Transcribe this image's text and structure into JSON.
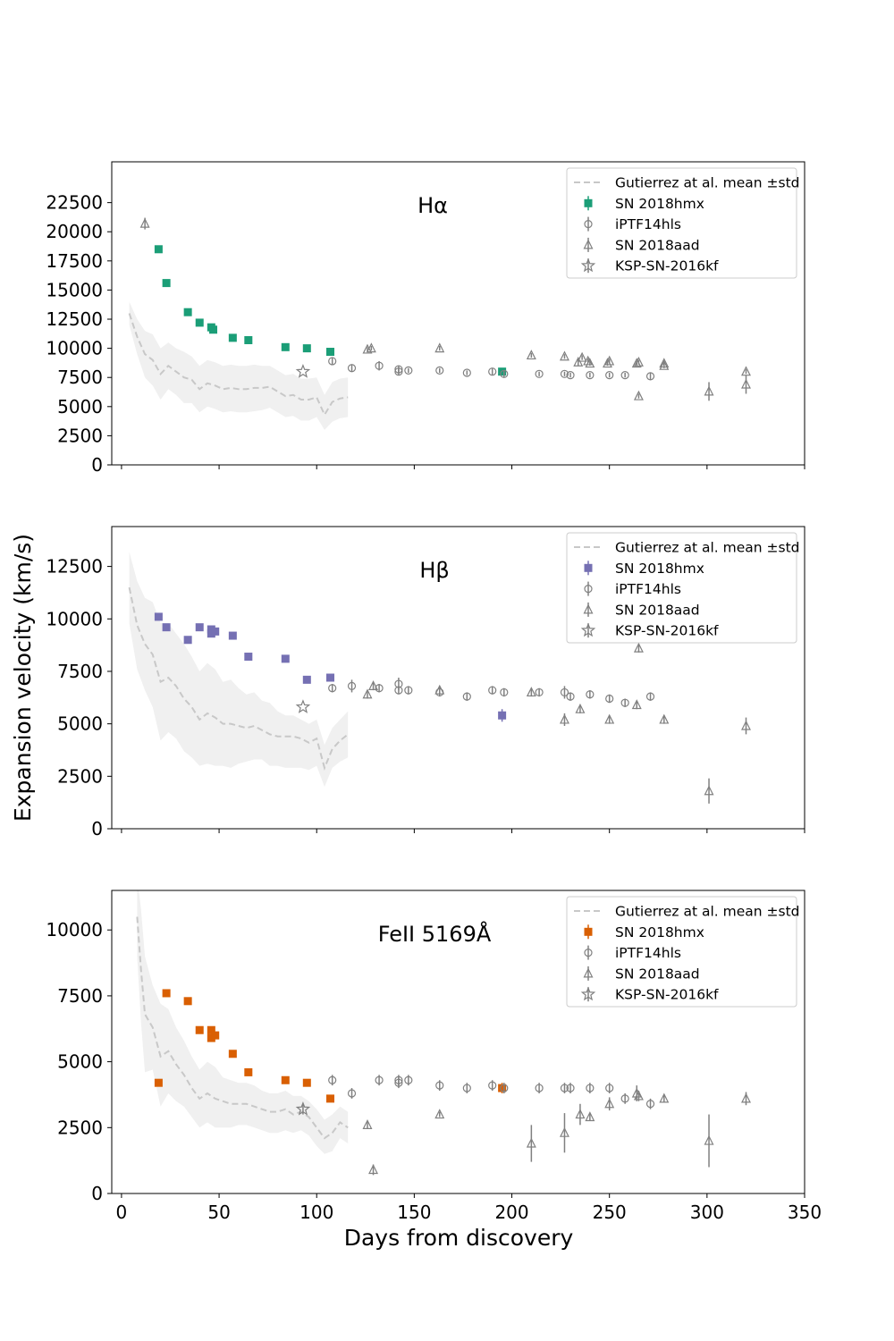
{
  "figure": {
    "ylabel": "Expansion velocity (km/s)",
    "xlabel": "Days from discovery",
    "xlim": [
      -5,
      350
    ],
    "xticks": [
      0,
      50,
      100,
      150,
      200,
      250,
      300,
      350
    ]
  },
  "legend_labels": [
    "Gutierrez at al. mean ±std",
    "SN 2018hmx",
    "iPTF14hls",
    "SN 2018aad",
    "KSP-SN-2016kf"
  ],
  "colors": {
    "Ha": "#1b9e77",
    "Hb": "#7570b3",
    "Fe": "#d95f02",
    "comparison": "#808080",
    "band": "#f0f0f0",
    "mean": "#c8c8c8"
  },
  "chart_data": [
    {
      "type": "scatter",
      "title": "Hα",
      "ylim": [
        0,
        26000
      ],
      "yticks": [
        0,
        2500,
        5000,
        7500,
        10000,
        12500,
        15000,
        17500,
        20000,
        22500
      ],
      "legend": "top-right",
      "series": [
        {
          "name": "Gutierrez at al. mean ±std",
          "kind": "band",
          "x": [
            4,
            8,
            12,
            16,
            20,
            24,
            28,
            32,
            36,
            40,
            44,
            48,
            52,
            56,
            60,
            64,
            68,
            72,
            76,
            80,
            84,
            88,
            92,
            96,
            100,
            104,
            108,
            112,
            116
          ],
          "y": [
            13000,
            11000,
            9500,
            9000,
            7800,
            8500,
            8000,
            7500,
            7300,
            6500,
            7000,
            6800,
            6500,
            6600,
            6500,
            6500,
            6600,
            6600,
            6700,
            6300,
            5900,
            6000,
            5600,
            5600,
            5800,
            4300,
            5400,
            5700,
            5800
          ],
          "upper": [
            14000,
            12500,
            11500,
            11200,
            10000,
            10500,
            10000,
            9700,
            9300,
            8500,
            9000,
            8800,
            8500,
            8600,
            8500,
            8500,
            8600,
            8500,
            8500,
            8100,
            7700,
            7800,
            7400,
            7400,
            7500,
            6000,
            7100,
            7400,
            7500
          ],
          "lower": [
            12000,
            9500,
            7500,
            6800,
            5600,
            6500,
            6000,
            5300,
            5300,
            4500,
            5000,
            4800,
            4500,
            4600,
            4500,
            4500,
            4600,
            4700,
            4900,
            4500,
            4100,
            4200,
            3800,
            3800,
            4100,
            3000,
            3700,
            4000,
            4100
          ]
        },
        {
          "name": "SN 2018hmx",
          "kind": "square",
          "x": [
            19,
            23,
            34,
            40,
            46,
            47,
            57,
            65,
            84,
            95,
            107,
            195
          ],
          "y": [
            18500,
            15600,
            13100,
            12200,
            11800,
            11600,
            10900,
            10700,
            10100,
            10000,
            9700,
            8000
          ]
        },
        {
          "name": "iPTF14hls",
          "kind": "circle",
          "x": [
            108,
            118,
            132,
            142,
            142,
            147,
            163,
            177,
            190,
            196,
            214,
            227,
            230,
            240,
            250,
            258,
            271
          ],
          "y": [
            8900,
            8300,
            8500,
            8000,
            8200,
            8100,
            8100,
            7900,
            8000,
            7800,
            7800,
            7800,
            7700,
            7700,
            7700,
            7700,
            7600
          ],
          "yerr": [
            300,
            300,
            400,
            300,
            300,
            200,
            200,
            200,
            300,
            300,
            200,
            200,
            200,
            200,
            200,
            200,
            300
          ]
        },
        {
          "name": "SN 2018aad",
          "kind": "triangle",
          "x": [
            12,
            126,
            128,
            163,
            210,
            227,
            234,
            236,
            239,
            240,
            249,
            250,
            264,
            265,
            265,
            278,
            278,
            301,
            320,
            320
          ],
          "y": [
            20700,
            9900,
            10000,
            10000,
            9400,
            9300,
            8800,
            9200,
            8900,
            8700,
            8700,
            8900,
            8700,
            8800,
            5900,
            8700,
            8500,
            6300,
            8000,
            6900
          ],
          "yerr": [
            500,
            200,
            200,
            200,
            200,
            200,
            300,
            200,
            200,
            200,
            200,
            200,
            200,
            200,
            200,
            200,
            200,
            800,
            200,
            800
          ]
        },
        {
          "name": "KSP-SN-2016kf",
          "kind": "star",
          "x": [
            93
          ],
          "y": [
            8000
          ]
        }
      ]
    },
    {
      "type": "scatter",
      "title": "Hβ",
      "ylim": [
        0,
        14400
      ],
      "yticks": [
        0,
        2500,
        5000,
        7500,
        10000,
        12500
      ],
      "legend": "top-right",
      "series": [
        {
          "name": "Gutierrez at al. mean ±std",
          "kind": "band",
          "x": [
            4,
            8,
            12,
            16,
            20,
            24,
            28,
            32,
            36,
            40,
            44,
            48,
            52,
            56,
            60,
            64,
            68,
            72,
            76,
            80,
            84,
            88,
            92,
            96,
            100,
            104,
            108,
            112,
            116
          ],
          "y": [
            11500,
            9700,
            8800,
            8300,
            7000,
            7200,
            6800,
            6200,
            5800,
            5200,
            5500,
            5300,
            5000,
            5000,
            4900,
            4800,
            4900,
            4700,
            4500,
            4400,
            4400,
            4400,
            4300,
            4100,
            4300,
            2900,
            3800,
            4200,
            4500
          ],
          "upper": [
            13200,
            11800,
            11000,
            10800,
            9800,
            9800,
            9300,
            8800,
            8200,
            7500,
            7900,
            7600,
            7000,
            7100,
            6700,
            6400,
            6500,
            6100,
            6000,
            5600,
            5400,
            5400,
            5200,
            5000,
            5200,
            4000,
            4800,
            5200,
            5600
          ],
          "lower": [
            9800,
            7600,
            6600,
            5800,
            4200,
            4600,
            4300,
            3700,
            3400,
            3000,
            3100,
            3000,
            3000,
            2900,
            3100,
            3200,
            3300,
            3300,
            3000,
            3000,
            2900,
            2900,
            2900,
            2800,
            3000,
            2000,
            2900,
            3200,
            3400
          ]
        },
        {
          "name": "SN 2018hmx",
          "kind": "square",
          "x": [
            19,
            23,
            34,
            40,
            46,
            46,
            48,
            57,
            65,
            84,
            95,
            107,
            195
          ],
          "y": [
            10100,
            9600,
            9000,
            9600,
            9500,
            9300,
            9400,
            9200,
            8200,
            8100,
            7100,
            7200,
            5400
          ],
          "yerr": [
            0,
            0,
            0,
            0,
            0,
            0,
            0,
            0,
            0,
            0,
            0,
            0,
            300
          ]
        },
        {
          "name": "iPTF14hls",
          "kind": "circle",
          "x": [
            108,
            118,
            132,
            142,
            142,
            147,
            163,
            177,
            190,
            196,
            214,
            227,
            230,
            240,
            250,
            258,
            271
          ],
          "y": [
            6700,
            6800,
            6700,
            6900,
            6600,
            6600,
            6500,
            6300,
            6600,
            6500,
            6500,
            6500,
            6300,
            6400,
            6200,
            6000,
            6300
          ],
          "yerr": [
            200,
            300,
            200,
            300,
            200,
            200,
            200,
            200,
            200,
            200,
            200,
            300,
            200,
            200,
            200,
            200,
            200
          ]
        },
        {
          "name": "SN 2018aad",
          "kind": "triangle",
          "x": [
            126,
            129,
            163,
            210,
            227,
            235,
            250,
            264,
            265,
            278,
            301,
            320
          ],
          "y": [
            6400,
            6800,
            6600,
            6500,
            5200,
            5700,
            5200,
            5900,
            8600,
            5200,
            1800,
            4900
          ],
          "yerr": [
            200,
            200,
            200,
            200,
            300,
            200,
            200,
            200,
            200,
            200,
            600,
            400
          ]
        },
        {
          "name": "KSP-SN-2016kf",
          "kind": "star",
          "x": [
            93
          ],
          "y": [
            5800
          ]
        }
      ]
    },
    {
      "type": "scatter",
      "title": "FeII 5169Å",
      "ylim": [
        0,
        11500
      ],
      "yticks": [
        0,
        2500,
        5000,
        7500,
        10000
      ],
      "legend": "top-right",
      "series": [
        {
          "name": "Gutierrez at al. mean ±std",
          "kind": "band",
          "x": [
            8,
            10,
            12,
            16,
            20,
            24,
            28,
            32,
            36,
            40,
            44,
            48,
            52,
            56,
            60,
            64,
            68,
            72,
            76,
            80,
            84,
            88,
            92,
            96,
            100,
            104,
            108,
            112,
            116
          ],
          "y": [
            10500,
            8500,
            6800,
            6300,
            5200,
            5400,
            4900,
            4500,
            4000,
            3600,
            3800,
            3600,
            3500,
            3400,
            3400,
            3400,
            3300,
            3200,
            3100,
            3100,
            3200,
            3000,
            3100,
            2900,
            2500,
            2100,
            2300,
            2700,
            2500
          ],
          "upper": [
            12000,
            10800,
            9000,
            7900,
            7200,
            7000,
            6300,
            5800,
            5200,
            4700,
            5000,
            4800,
            4400,
            4300,
            4200,
            4200,
            4100,
            3900,
            3800,
            3800,
            3900,
            3700,
            3700,
            3500,
            3200,
            2800,
            3000,
            3300,
            3100
          ],
          "lower": [
            9000,
            6500,
            4600,
            4700,
            3300,
            3800,
            3500,
            3300,
            2900,
            2500,
            2700,
            2500,
            2500,
            2500,
            2600,
            2600,
            2500,
            2400,
            2300,
            2300,
            2400,
            2300,
            2400,
            2200,
            1800,
            1500,
            1600,
            2100,
            1900
          ]
        },
        {
          "name": "SN 2018hmx",
          "kind": "square",
          "x": [
            19,
            23,
            34,
            40,
            46,
            46,
            48,
            57,
            65,
            84,
            95,
            107,
            195
          ],
          "y": [
            4200,
            7600,
            7300,
            6200,
            6200,
            5900,
            6000,
            5300,
            4600,
            4300,
            4200,
            3600,
            4000
          ],
          "yerr": [
            0,
            0,
            0,
            0,
            0,
            0,
            0,
            0,
            0,
            0,
            0,
            0,
            200
          ]
        },
        {
          "name": "iPTF14hls",
          "kind": "circle",
          "x": [
            108,
            118,
            132,
            142,
            142,
            147,
            163,
            177,
            190,
            196,
            214,
            227,
            230,
            240,
            250,
            258,
            271
          ],
          "y": [
            4300,
            3800,
            4300,
            4300,
            4200,
            4300,
            4100,
            4000,
            4100,
            4000,
            4000,
            4000,
            4000,
            4000,
            4000,
            3600,
            3400
          ],
          "yerr": [
            200,
            200,
            200,
            200,
            200,
            200,
            200,
            200,
            200,
            200,
            200,
            200,
            200,
            200,
            200,
            200,
            200
          ]
        },
        {
          "name": "SN 2018aad",
          "kind": "triangle",
          "x": [
            126,
            129,
            163,
            210,
            227,
            235,
            240,
            250,
            264,
            265,
            278,
            301,
            320
          ],
          "y": [
            2600,
            900,
            3000,
            1900,
            2300,
            3000,
            2900,
            3400,
            3800,
            3700,
            3600,
            2000,
            3600
          ],
          "yerr": [
            150,
            200,
            100,
            700,
            750,
            400,
            150,
            250,
            300,
            200,
            150,
            1000,
            250
          ]
        },
        {
          "name": "KSP-SN-2016kf",
          "kind": "star",
          "x": [
            93
          ],
          "y": [
            3200
          ],
          "yerr": [
            200
          ]
        }
      ]
    }
  ]
}
